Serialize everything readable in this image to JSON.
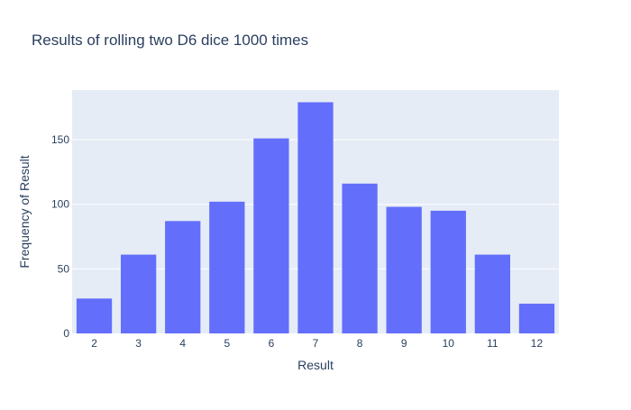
{
  "chart_data": {
    "type": "bar",
    "title": "Results of rolling two D6 dice 1000 times",
    "xlabel": "Result",
    "ylabel": "Frequency of Result",
    "categories": [
      "2",
      "3",
      "4",
      "5",
      "6",
      "7",
      "8",
      "9",
      "10",
      "11",
      "12"
    ],
    "values": [
      27,
      61,
      87,
      102,
      151,
      179,
      116,
      98,
      95,
      61,
      23
    ],
    "ylim": [
      0,
      188.4
    ],
    "yticks": [
      0,
      50,
      100,
      150
    ],
    "grid": true,
    "colors": {
      "bar": "#636efa",
      "plot_background": "#e5ecf6",
      "gridline": "#ffffff",
      "text": "#2a3f5f"
    }
  }
}
